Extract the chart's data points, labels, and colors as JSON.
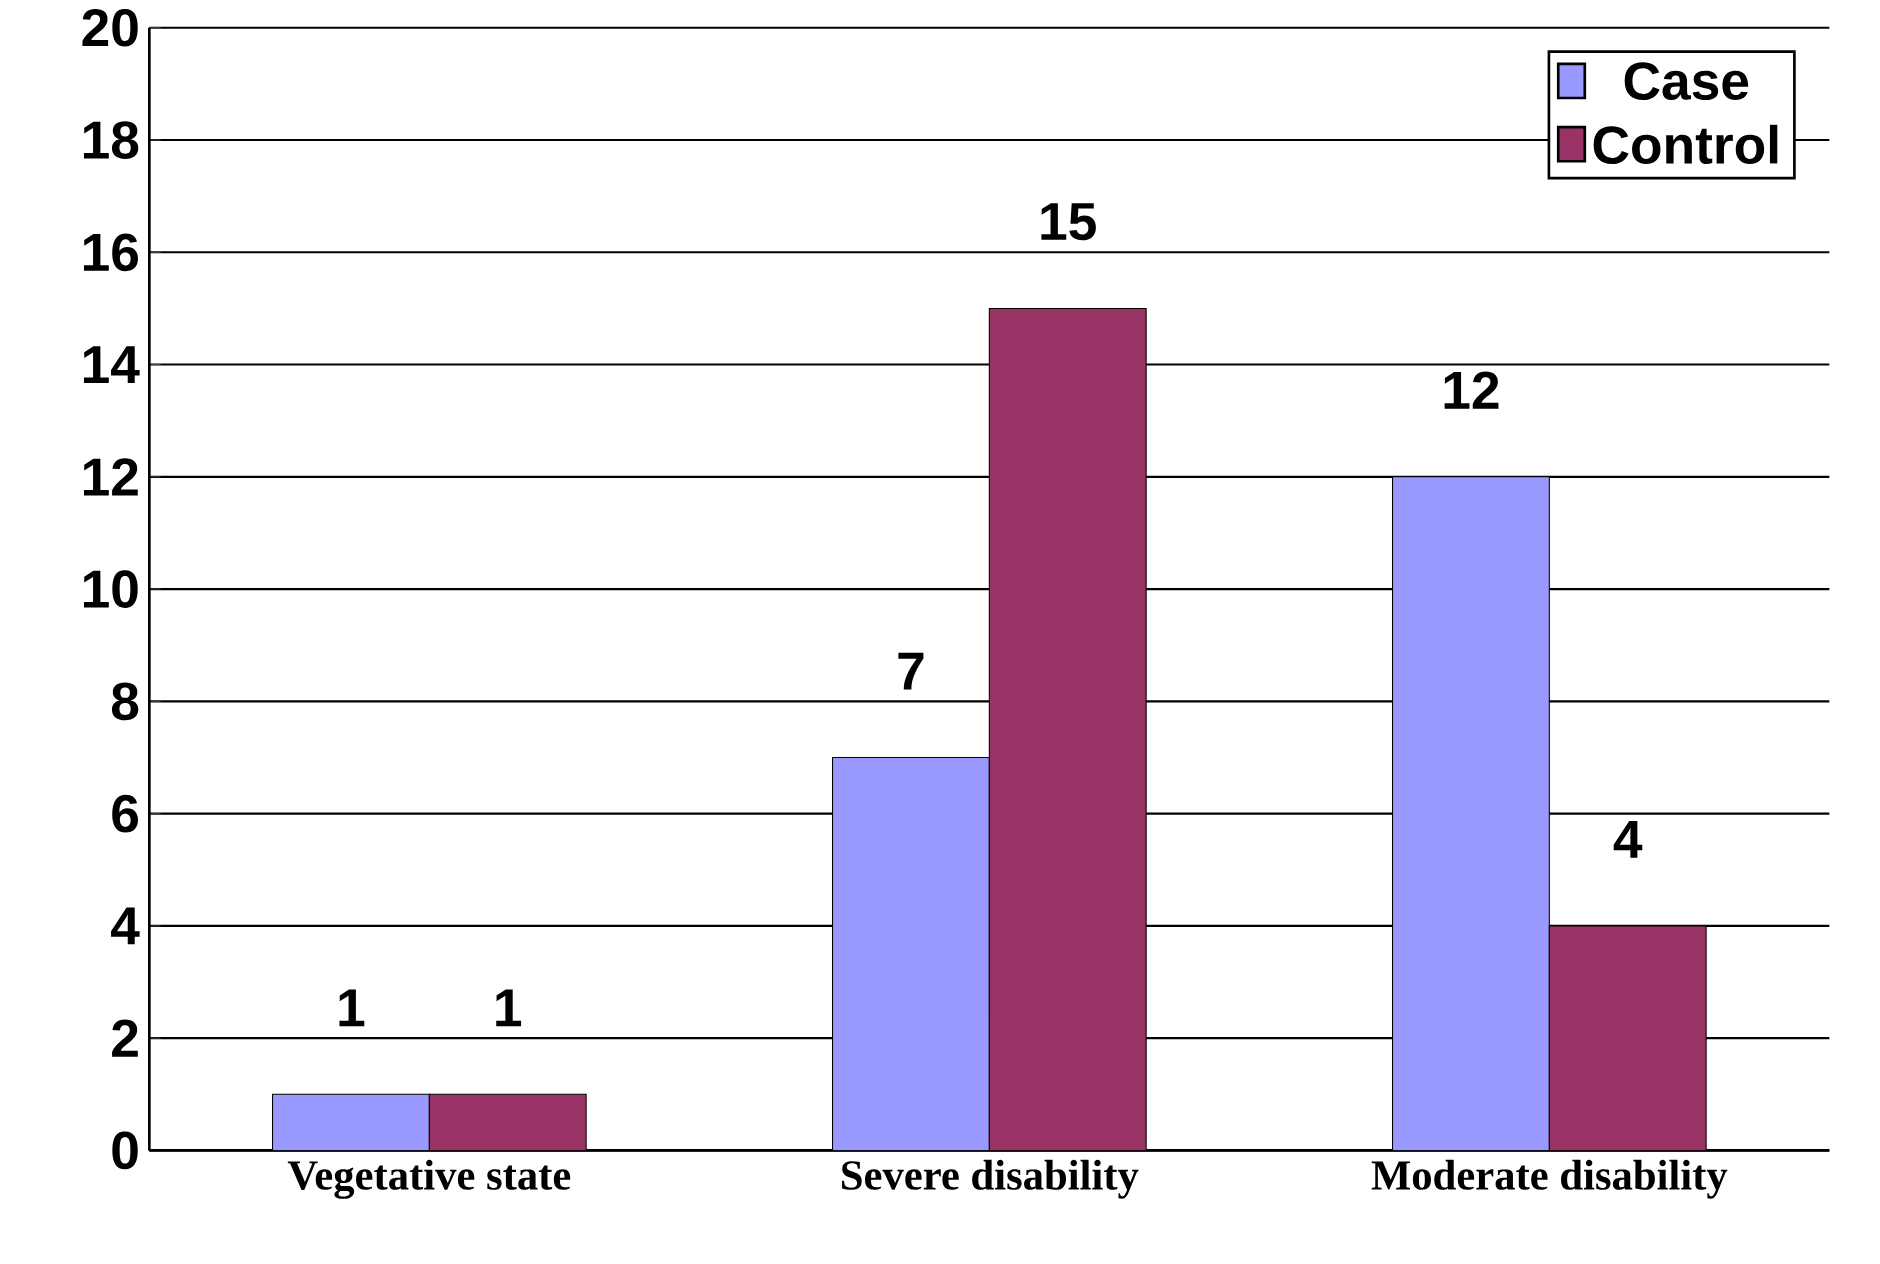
{
  "chart_data": {
    "type": "bar",
    "categories": [
      "Vegetative state",
      "Severe disability",
      "Moderate disability"
    ],
    "series": [
      {
        "name": "Case",
        "color": "#9999ff",
        "values": [
          1,
          7,
          12
        ]
      },
      {
        "name": "Control",
        "color": "#993366",
        "values": [
          1,
          15,
          4
        ]
      }
    ],
    "ylim": [
      0,
      20
    ],
    "yticks": [
      0,
      2,
      4,
      6,
      8,
      10,
      12,
      14,
      16,
      18,
      20
    ],
    "grid": "y",
    "legend": "top right",
    "data_labels": true
  }
}
